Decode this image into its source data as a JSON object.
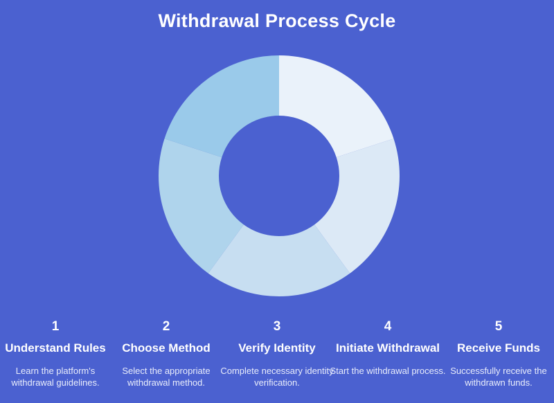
{
  "title": "Withdrawal Process Cycle",
  "colors": {
    "background": "#4B61D0",
    "title_text": "#FFFFFF",
    "step_text": "#FFFFFF",
    "description_text": "#E9EDFB"
  },
  "steps": [
    {
      "number": "1",
      "title": "Understand Rules",
      "description": "Learn the platform's withdrawal guidelines."
    },
    {
      "number": "2",
      "title": "Choose Method",
      "description": "Select the appropriate withdrawal method."
    },
    {
      "number": "3",
      "title": "Verify Identity",
      "description": "Complete necessary identity verification."
    },
    {
      "number": "4",
      "title": "Initiate Withdrawal",
      "description": "Start the withdrawal process."
    },
    {
      "number": "5",
      "title": "Receive Funds",
      "description": "Successfully receive the withdrawn funds."
    }
  ],
  "chart_data": {
    "type": "pie",
    "subtype": "donut",
    "title": "Withdrawal Process Cycle",
    "categories": [
      "Understand Rules",
      "Choose Method",
      "Verify Identity",
      "Initiate Withdrawal",
      "Receive Funds"
    ],
    "values": [
      20,
      20,
      20,
      20,
      20
    ],
    "unit": "percent",
    "start_angle_deg": -90,
    "direction": "clockwise",
    "inner_radius_ratio": 0.5,
    "segment_colors": [
      "#EAF2FA",
      "#DCE9F6",
      "#C7DEF1",
      "#AFD4EC",
      "#9ACAEA"
    ],
    "labels_shown": false,
    "legend": "none"
  }
}
